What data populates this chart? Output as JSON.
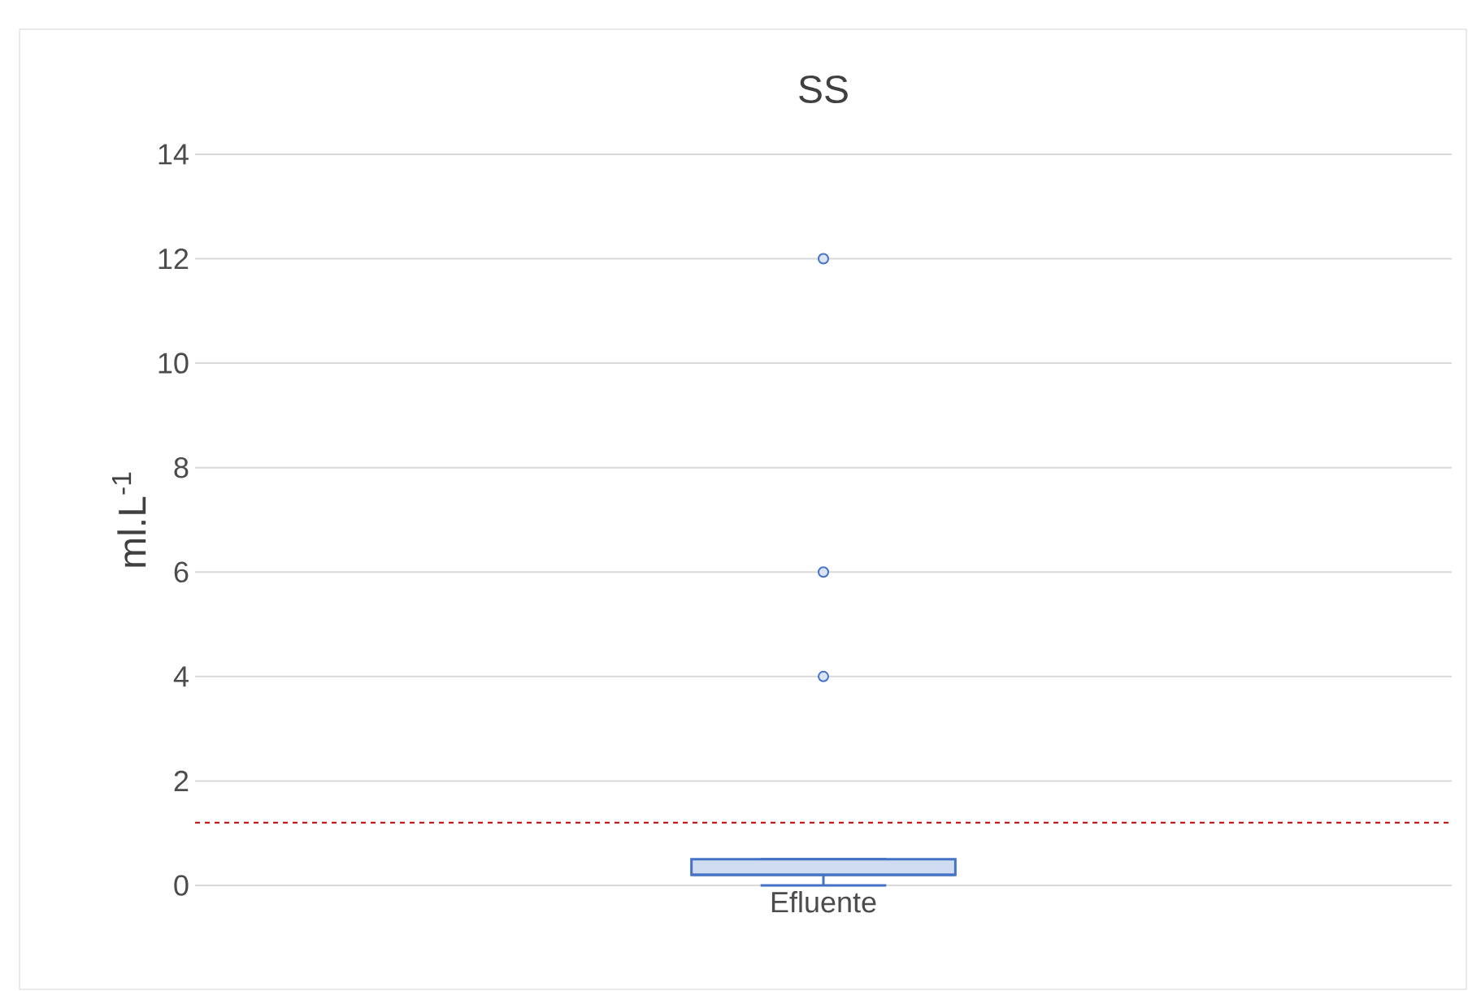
{
  "chart_data": {
    "type": "box",
    "title": "SS",
    "ylabel": "ml.L$^{-1}$",
    "categories": [
      "Efluente"
    ],
    "boxes": [
      {
        "low": 0,
        "q1": 0.2,
        "median": 0.2,
        "q3": 0.5,
        "high": 0.5,
        "outliers": [
          12,
          6,
          4
        ]
      }
    ],
    "color": "#4472c4",
    "ylim": [
      0,
      14
    ],
    "yticks": [
      0,
      2,
      4,
      6,
      8,
      10,
      12,
      14
    ],
    "grid": "y",
    "ref_lines": [
      {
        "axis": "y",
        "value": 1.2,
        "color": "#c00000",
        "line_style": "dashed"
      }
    ]
  }
}
